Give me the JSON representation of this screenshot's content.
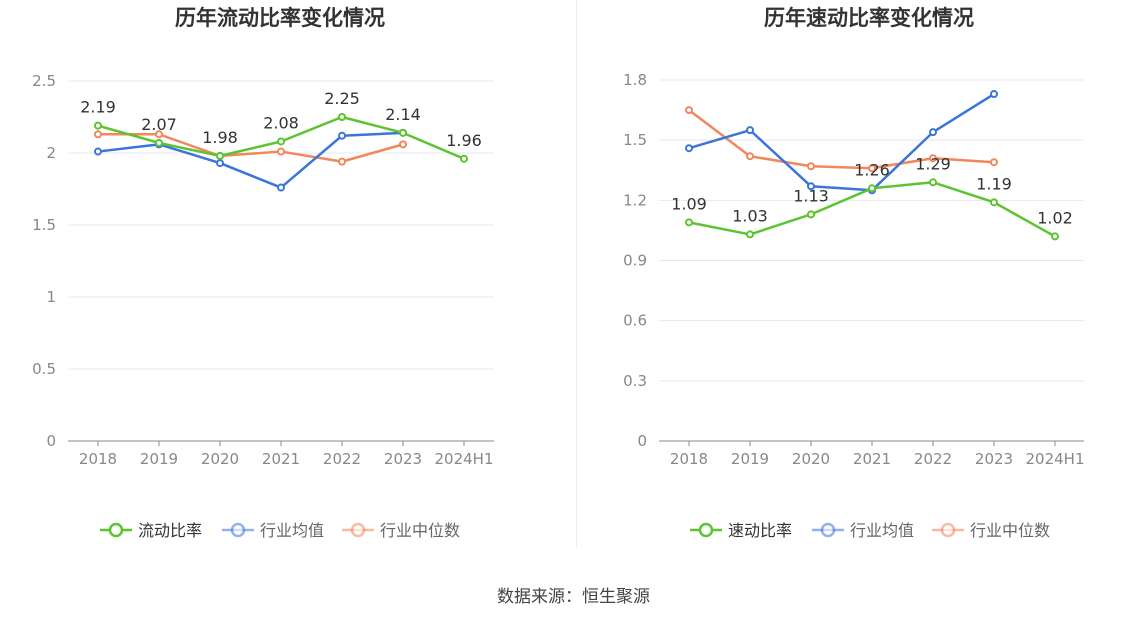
{
  "source_text": "数据来源：恒生聚源",
  "colors": {
    "company": "#5cc42f",
    "industry_avg": "#3b75db",
    "industry_median": "#f2875c",
    "grid": "#e6e8f0",
    "axis": "#888888",
    "tick_text": "#888888",
    "label_text": "#333333"
  },
  "chart_data": [
    {
      "type": "line",
      "title": "历年流动比率变化情况",
      "categories": [
        "2018",
        "2019",
        "2020",
        "2021",
        "2022",
        "2023",
        "2024H1"
      ],
      "ylim": [
        0,
        2.5
      ],
      "yticks": [
        0,
        0.5,
        1,
        1.5,
        2,
        2.5
      ],
      "ytick_labels": [
        "0",
        "0.5",
        "1",
        "1.5",
        "2",
        "2.5"
      ],
      "grid": true,
      "legend_position": "bottom",
      "series": [
        {
          "name": "流动比率",
          "key": "company",
          "values": [
            2.19,
            2.07,
            1.98,
            2.08,
            2.25,
            2.14,
            1.96
          ],
          "labels": [
            "2.19",
            "2.07",
            "1.98",
            "2.08",
            "2.25",
            "2.14",
            "1.96"
          ]
        },
        {
          "name": "行业均值",
          "key": "industry_avg",
          "values": [
            2.01,
            2.06,
            1.93,
            1.76,
            2.12,
            2.14,
            null
          ]
        },
        {
          "name": "行业中位数",
          "key": "industry_median",
          "values": [
            2.13,
            2.13,
            1.98,
            2.01,
            1.94,
            2.06,
            null
          ]
        }
      ]
    },
    {
      "type": "line",
      "title": "历年速动比率变化情况",
      "categories": [
        "2018",
        "2019",
        "2020",
        "2021",
        "2022",
        "2023",
        "2024H1"
      ],
      "ylim": [
        0,
        1.8
      ],
      "yticks": [
        0,
        0.3,
        0.6,
        0.9,
        1.2,
        1.5,
        1.8
      ],
      "ytick_labels": [
        "0",
        "0.3",
        "0.6",
        "0.9",
        "1.2",
        "1.5",
        "1.8"
      ],
      "grid": true,
      "legend_position": "bottom",
      "series": [
        {
          "name": "速动比率",
          "key": "company",
          "values": [
            1.09,
            1.03,
            1.13,
            1.26,
            1.29,
            1.19,
            1.02
          ],
          "labels": [
            "1.09",
            "1.03",
            "1.13",
            "1.26",
            "1.29",
            "1.19",
            "1.02"
          ]
        },
        {
          "name": "行业均值",
          "key": "industry_avg",
          "values": [
            1.46,
            1.55,
            1.27,
            1.25,
            1.54,
            1.73,
            null
          ]
        },
        {
          "name": "行业中位数",
          "key": "industry_median",
          "values": [
            1.65,
            1.42,
            1.37,
            1.36,
            1.41,
            1.39,
            null
          ]
        }
      ]
    }
  ]
}
